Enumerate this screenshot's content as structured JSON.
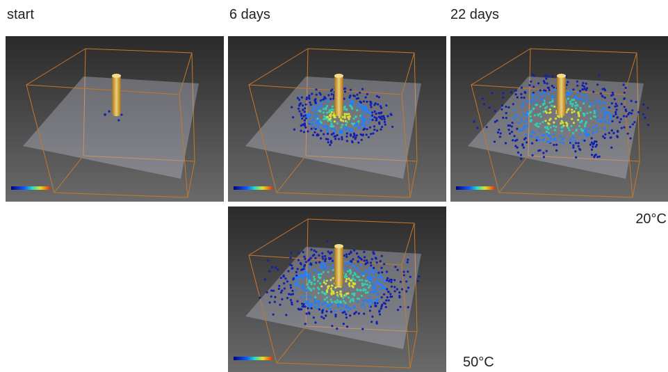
{
  "columns": {
    "start": "start",
    "day6": "6 days",
    "day22": "22 days"
  },
  "temperatures": {
    "t20": "20°C",
    "t50": "50°C"
  }
}
